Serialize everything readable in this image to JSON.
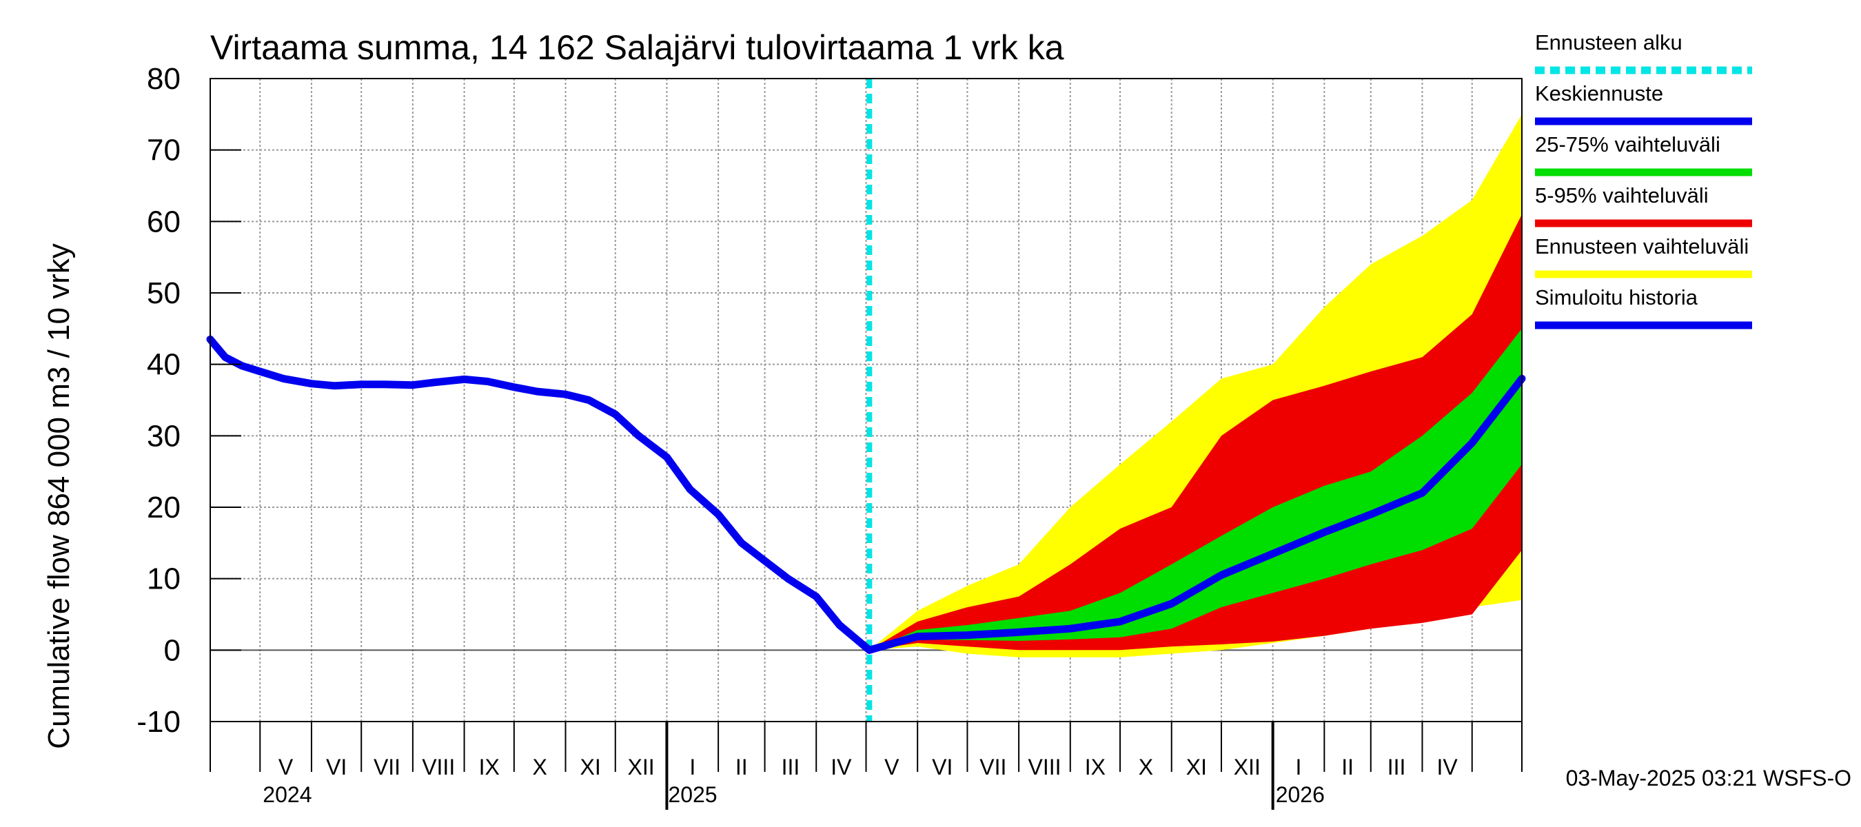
{
  "chart_data": {
    "type": "area",
    "title": "Virtaama summa, 14 162 Salajärvi tulovirtaama 1 vrk ka",
    "ylabel": "Cumulative flow    864 000 m3 / 10 vrky",
    "ylim": [
      -10,
      80
    ],
    "yticks": [
      -10,
      0,
      10,
      20,
      30,
      40,
      50,
      60,
      70,
      80
    ],
    "xlim": [
      "2024-04-01",
      "2026-05-31"
    ],
    "grid": true,
    "forecast_start": "2025-05-03",
    "months": [
      "V",
      "VI",
      "VII",
      "VIII",
      "IX",
      "X",
      "XI",
      "XII",
      "I",
      "II",
      "III",
      "IV",
      "V",
      "VI",
      "VII",
      "VIII",
      "IX",
      "X",
      "XI",
      "XII",
      "I",
      "II",
      "III",
      "IV"
    ],
    "years": [
      "2024",
      "2025",
      "2026"
    ],
    "legend": {
      "position": "right",
      "entries": [
        {
          "label": "Ennusteen alku",
          "color": "#00e5e5",
          "style": "dashed"
        },
        {
          "label": "Keskiennuste",
          "color": "#0000ee",
          "style": "solid"
        },
        {
          "label": "25-75% vaihteluväli",
          "color": "#00dd00",
          "style": "solid"
        },
        {
          "label": "5-95% vaihteluväli",
          "color": "#ee0000",
          "style": "solid"
        },
        {
          "label": "Ennusteen vaihteluväli",
          "color": "#ffff00",
          "style": "solid"
        },
        {
          "label": "Simuloitu historia",
          "color": "#0000ee",
          "style": "solid"
        }
      ]
    },
    "series": [
      {
        "name": "Simuloitu historia",
        "color": "#0000ee",
        "x": [
          "2024-04-01",
          "2024-04-10",
          "2024-04-20",
          "2024-05-01",
          "2024-05-15",
          "2024-06-01",
          "2024-06-15",
          "2024-07-01",
          "2024-07-15",
          "2024-08-01",
          "2024-08-15",
          "2024-09-01",
          "2024-09-15",
          "2024-10-01",
          "2024-10-15",
          "2024-11-01",
          "2024-11-15",
          "2024-12-01",
          "2024-12-15",
          "2025-01-01",
          "2025-01-15",
          "2025-02-01",
          "2025-02-15",
          "2025-03-01",
          "2025-03-15",
          "2025-04-01",
          "2025-04-15",
          "2025-05-03"
        ],
        "y": [
          43.5,
          41,
          39.8,
          39,
          38,
          37.3,
          37,
          37.2,
          37.2,
          37.1,
          37.5,
          37.9,
          37.6,
          36.8,
          36.2,
          35.8,
          35,
          33,
          30,
          27,
          22.5,
          19,
          15,
          12.5,
          10,
          7.5,
          3.5,
          0
        ]
      },
      {
        "name": "Keskiennuste",
        "color": "#0000ee",
        "x": [
          "2025-05-03",
          "2025-06-01",
          "2025-07-01",
          "2025-08-01",
          "2025-09-01",
          "2025-10-01",
          "2025-11-01",
          "2025-12-01",
          "2026-01-01",
          "2026-02-01",
          "2026-03-01",
          "2026-04-01",
          "2026-05-01",
          "2026-05-31"
        ],
        "y": [
          0,
          1.9,
          2.1,
          2.5,
          3,
          4,
          6.5,
          10.5,
          13.5,
          16.5,
          19,
          22,
          29,
          38
        ]
      }
    ],
    "bands": [
      {
        "name": "Ennusteen vaihteluväli",
        "color": "#ffff00",
        "x": [
          "2025-05-03",
          "2025-06-01",
          "2025-07-01",
          "2025-08-01",
          "2025-09-01",
          "2025-10-01",
          "2025-11-01",
          "2025-12-01",
          "2026-01-01",
          "2026-02-01",
          "2026-03-01",
          "2026-04-01",
          "2026-05-01",
          "2026-05-31"
        ],
        "lower": [
          0,
          0.5,
          -0.5,
          -1,
          -1,
          -1,
          -0.5,
          0,
          1,
          2,
          3,
          4,
          6,
          7
        ],
        "upper": [
          0,
          5.5,
          9,
          12,
          20,
          26,
          32,
          38,
          40,
          48,
          54,
          58,
          63,
          75
        ]
      },
      {
        "name": "5-95% vaihteluväli",
        "color": "#ee0000",
        "x": [
          "2025-05-03",
          "2025-06-01",
          "2025-07-01",
          "2025-08-01",
          "2025-09-01",
          "2025-10-01",
          "2025-11-01",
          "2025-12-01",
          "2026-01-01",
          "2026-02-01",
          "2026-03-01",
          "2026-04-01",
          "2026-05-01",
          "2026-05-31"
        ],
        "lower": [
          0,
          1,
          0.5,
          0,
          0,
          0,
          0.5,
          0.8,
          1.2,
          2,
          3,
          3.8,
          5,
          14
        ],
        "upper": [
          0,
          4,
          6,
          7.5,
          12,
          17,
          20,
          30,
          35,
          37,
          39,
          41,
          47,
          61
        ]
      },
      {
        "name": "25-75% vaihteluväli",
        "color": "#00dd00",
        "x": [
          "2025-05-03",
          "2025-06-01",
          "2025-07-01",
          "2025-08-01",
          "2025-09-01",
          "2025-10-01",
          "2025-11-01",
          "2025-12-01",
          "2026-01-01",
          "2026-02-01",
          "2026-03-01",
          "2026-04-01",
          "2026-05-01",
          "2026-05-31"
        ],
        "lower": [
          0,
          1.5,
          1.4,
          1.3,
          1.5,
          1.8,
          3,
          6,
          8,
          10,
          12,
          14,
          17,
          26
        ],
        "upper": [
          0,
          2.8,
          3.5,
          4.5,
          5.5,
          8,
          12,
          16,
          20,
          23,
          25,
          30,
          36,
          45
        ]
      }
    ]
  },
  "footer": {
    "timestamp": "03-May-2025 03:21 WSFS-O"
  }
}
